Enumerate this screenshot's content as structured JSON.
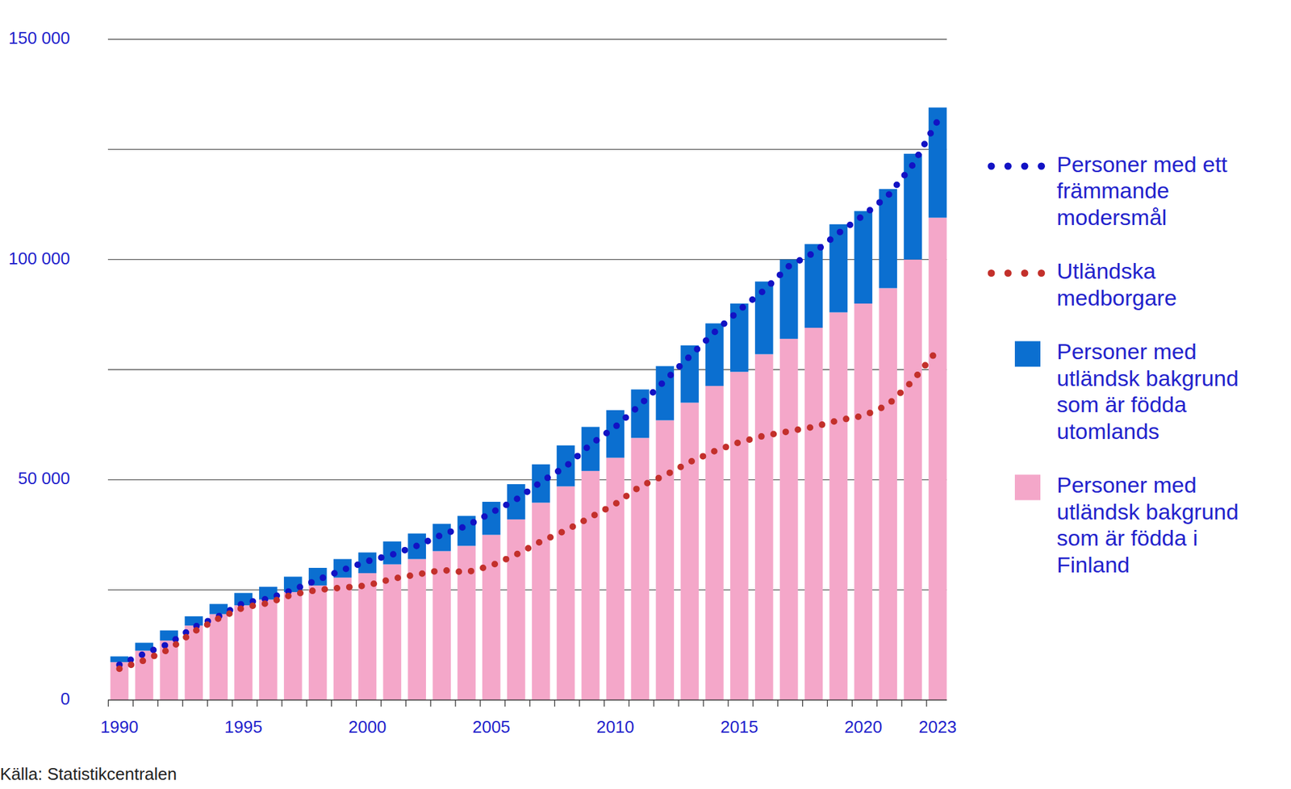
{
  "chart_data": {
    "type": "bar",
    "stacked": true,
    "grid": true,
    "legend": "right",
    "source": "Källa: Statistikcentralen",
    "categories": [
      1990,
      null,
      null,
      null,
      null,
      1995,
      null,
      null,
      null,
      null,
      2000,
      null,
      null,
      null,
      null,
      2005,
      null,
      null,
      null,
      null,
      2010,
      null,
      null,
      null,
      null,
      2015,
      null,
      null,
      null,
      null,
      2020,
      null,
      null,
      2023
    ],
    "ylim": [
      0,
      150000
    ],
    "yticks": [
      {
        "value": 0,
        "label": "0"
      },
      {
        "value": 50000,
        "label": "50 000"
      },
      {
        "value": 100000,
        "label": "100 000"
      },
      {
        "value": 150000,
        "label": "150 000"
      }
    ],
    "series": [
      {
        "name": "Personer med ett främmande modersmål",
        "type": "line",
        "line_style": "dotted",
        "color": "#1212c4",
        "values": [
          8000,
          10500,
          12800,
          16500,
          19000,
          22000,
          23000,
          25000,
          27300,
          29500,
          31500,
          33000,
          35000,
          37500,
          39500,
          42500,
          45500,
          49500,
          53000,
          58000,
          62000,
          67000,
          72500,
          78000,
          83500,
          88500,
          93000,
          98500,
          101500,
          106000,
          110000,
          114500,
          121500,
          131500
        ]
      },
      {
        "name": "Utländska medborgare",
        "type": "line",
        "line_style": "dotted",
        "color": "#c3302b",
        "values": [
          7100,
          9000,
          11500,
          15500,
          18500,
          21000,
          22000,
          24000,
          25000,
          25500,
          26000,
          27500,
          28500,
          29500,
          29000,
          30500,
          33000,
          36000,
          38500,
          41500,
          44500,
          48500,
          51000,
          54000,
          56500,
          58500,
          60000,
          61000,
          62000,
          63500,
          64500,
          67000,
          72500,
          79500
        ]
      },
      {
        "name": "Personer med utländsk bakgrund som är födda utomlands",
        "type": "bar",
        "color": "#0b6fd0",
        "values": [
          1300,
          1800,
          2300,
          2100,
          2300,
          2800,
          2900,
          3500,
          4000,
          4200,
          4700,
          5200,
          5800,
          6200,
          6800,
          7500,
          8000,
          8700,
          9300,
          10000,
          10800,
          11000,
          12300,
          13000,
          14200,
          15500,
          16500,
          18000,
          19000,
          20000,
          21000,
          22500,
          24000,
          25000
        ]
      },
      {
        "name": "Personer med utländsk bakgrund som är födda i Finland",
        "type": "bar",
        "color": "#f4a7c9",
        "values": [
          8600,
          11200,
          13500,
          16900,
          19500,
          21500,
          22800,
          24500,
          26000,
          27800,
          28800,
          30800,
          32000,
          33800,
          35000,
          37500,
          41000,
          44800,
          48500,
          52000,
          55000,
          59500,
          63500,
          67500,
          71300,
          74500,
          78500,
          82000,
          84500,
          88000,
          90000,
          93500,
          100000,
          109500
        ]
      }
    ]
  }
}
